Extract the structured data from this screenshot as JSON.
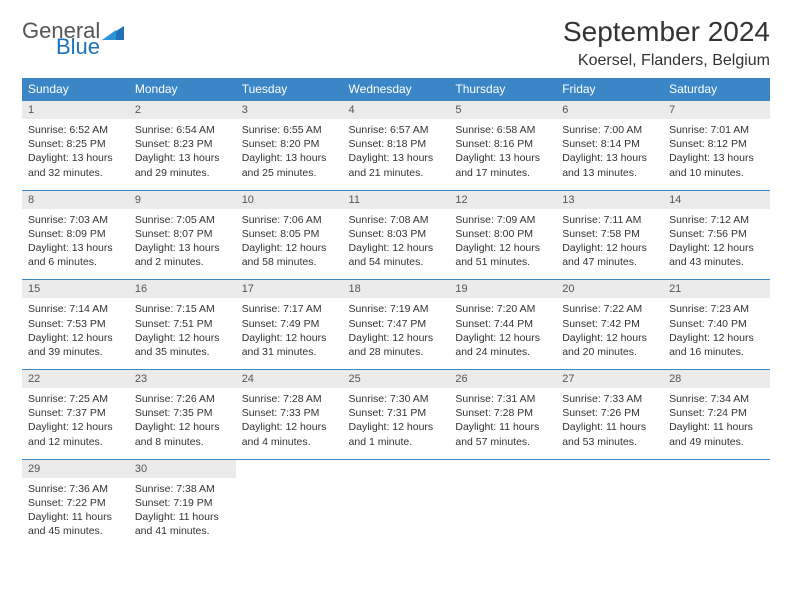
{
  "logo": {
    "general": "General",
    "blue": "Blue"
  },
  "title": "September 2024",
  "location": "Koersel, Flanders, Belgium",
  "colors": {
    "header_bg": "#3b86c6",
    "header_text": "#ffffff",
    "daynum_bg": "#ebebeb",
    "border": "#3b86c6",
    "body_text": "#333333",
    "logo_blue": "#1f71b8"
  },
  "day_headers": [
    "Sunday",
    "Monday",
    "Tuesday",
    "Wednesday",
    "Thursday",
    "Friday",
    "Saturday"
  ],
  "weeks": [
    {
      "nums": [
        "1",
        "2",
        "3",
        "4",
        "5",
        "6",
        "7"
      ],
      "cells": [
        {
          "sunrise": "Sunrise: 6:52 AM",
          "sunset": "Sunset: 8:25 PM",
          "daylight1": "Daylight: 13 hours",
          "daylight2": "and 32 minutes."
        },
        {
          "sunrise": "Sunrise: 6:54 AM",
          "sunset": "Sunset: 8:23 PM",
          "daylight1": "Daylight: 13 hours",
          "daylight2": "and 29 minutes."
        },
        {
          "sunrise": "Sunrise: 6:55 AM",
          "sunset": "Sunset: 8:20 PM",
          "daylight1": "Daylight: 13 hours",
          "daylight2": "and 25 minutes."
        },
        {
          "sunrise": "Sunrise: 6:57 AM",
          "sunset": "Sunset: 8:18 PM",
          "daylight1": "Daylight: 13 hours",
          "daylight2": "and 21 minutes."
        },
        {
          "sunrise": "Sunrise: 6:58 AM",
          "sunset": "Sunset: 8:16 PM",
          "daylight1": "Daylight: 13 hours",
          "daylight2": "and 17 minutes."
        },
        {
          "sunrise": "Sunrise: 7:00 AM",
          "sunset": "Sunset: 8:14 PM",
          "daylight1": "Daylight: 13 hours",
          "daylight2": "and 13 minutes."
        },
        {
          "sunrise": "Sunrise: 7:01 AM",
          "sunset": "Sunset: 8:12 PM",
          "daylight1": "Daylight: 13 hours",
          "daylight2": "and 10 minutes."
        }
      ]
    },
    {
      "nums": [
        "8",
        "9",
        "10",
        "11",
        "12",
        "13",
        "14"
      ],
      "cells": [
        {
          "sunrise": "Sunrise: 7:03 AM",
          "sunset": "Sunset: 8:09 PM",
          "daylight1": "Daylight: 13 hours",
          "daylight2": "and 6 minutes."
        },
        {
          "sunrise": "Sunrise: 7:05 AM",
          "sunset": "Sunset: 8:07 PM",
          "daylight1": "Daylight: 13 hours",
          "daylight2": "and 2 minutes."
        },
        {
          "sunrise": "Sunrise: 7:06 AM",
          "sunset": "Sunset: 8:05 PM",
          "daylight1": "Daylight: 12 hours",
          "daylight2": "and 58 minutes."
        },
        {
          "sunrise": "Sunrise: 7:08 AM",
          "sunset": "Sunset: 8:03 PM",
          "daylight1": "Daylight: 12 hours",
          "daylight2": "and 54 minutes."
        },
        {
          "sunrise": "Sunrise: 7:09 AM",
          "sunset": "Sunset: 8:00 PM",
          "daylight1": "Daylight: 12 hours",
          "daylight2": "and 51 minutes."
        },
        {
          "sunrise": "Sunrise: 7:11 AM",
          "sunset": "Sunset: 7:58 PM",
          "daylight1": "Daylight: 12 hours",
          "daylight2": "and 47 minutes."
        },
        {
          "sunrise": "Sunrise: 7:12 AM",
          "sunset": "Sunset: 7:56 PM",
          "daylight1": "Daylight: 12 hours",
          "daylight2": "and 43 minutes."
        }
      ]
    },
    {
      "nums": [
        "15",
        "16",
        "17",
        "18",
        "19",
        "20",
        "21"
      ],
      "cells": [
        {
          "sunrise": "Sunrise: 7:14 AM",
          "sunset": "Sunset: 7:53 PM",
          "daylight1": "Daylight: 12 hours",
          "daylight2": "and 39 minutes."
        },
        {
          "sunrise": "Sunrise: 7:15 AM",
          "sunset": "Sunset: 7:51 PM",
          "daylight1": "Daylight: 12 hours",
          "daylight2": "and 35 minutes."
        },
        {
          "sunrise": "Sunrise: 7:17 AM",
          "sunset": "Sunset: 7:49 PM",
          "daylight1": "Daylight: 12 hours",
          "daylight2": "and 31 minutes."
        },
        {
          "sunrise": "Sunrise: 7:19 AM",
          "sunset": "Sunset: 7:47 PM",
          "daylight1": "Daylight: 12 hours",
          "daylight2": "and 28 minutes."
        },
        {
          "sunrise": "Sunrise: 7:20 AM",
          "sunset": "Sunset: 7:44 PM",
          "daylight1": "Daylight: 12 hours",
          "daylight2": "and 24 minutes."
        },
        {
          "sunrise": "Sunrise: 7:22 AM",
          "sunset": "Sunset: 7:42 PM",
          "daylight1": "Daylight: 12 hours",
          "daylight2": "and 20 minutes."
        },
        {
          "sunrise": "Sunrise: 7:23 AM",
          "sunset": "Sunset: 7:40 PM",
          "daylight1": "Daylight: 12 hours",
          "daylight2": "and 16 minutes."
        }
      ]
    },
    {
      "nums": [
        "22",
        "23",
        "24",
        "25",
        "26",
        "27",
        "28"
      ],
      "cells": [
        {
          "sunrise": "Sunrise: 7:25 AM",
          "sunset": "Sunset: 7:37 PM",
          "daylight1": "Daylight: 12 hours",
          "daylight2": "and 12 minutes."
        },
        {
          "sunrise": "Sunrise: 7:26 AM",
          "sunset": "Sunset: 7:35 PM",
          "daylight1": "Daylight: 12 hours",
          "daylight2": "and 8 minutes."
        },
        {
          "sunrise": "Sunrise: 7:28 AM",
          "sunset": "Sunset: 7:33 PM",
          "daylight1": "Daylight: 12 hours",
          "daylight2": "and 4 minutes."
        },
        {
          "sunrise": "Sunrise: 7:30 AM",
          "sunset": "Sunset: 7:31 PM",
          "daylight1": "Daylight: 12 hours",
          "daylight2": "and 1 minute."
        },
        {
          "sunrise": "Sunrise: 7:31 AM",
          "sunset": "Sunset: 7:28 PM",
          "daylight1": "Daylight: 11 hours",
          "daylight2": "and 57 minutes."
        },
        {
          "sunrise": "Sunrise: 7:33 AM",
          "sunset": "Sunset: 7:26 PM",
          "daylight1": "Daylight: 11 hours",
          "daylight2": "and 53 minutes."
        },
        {
          "sunrise": "Sunrise: 7:34 AM",
          "sunset": "Sunset: 7:24 PM",
          "daylight1": "Daylight: 11 hours",
          "daylight2": "and 49 minutes."
        }
      ]
    },
    {
      "nums": [
        "29",
        "30",
        "",
        "",
        "",
        "",
        ""
      ],
      "cells": [
        {
          "sunrise": "Sunrise: 7:36 AM",
          "sunset": "Sunset: 7:22 PM",
          "daylight1": "Daylight: 11 hours",
          "daylight2": "and 45 minutes."
        },
        {
          "sunrise": "Sunrise: 7:38 AM",
          "sunset": "Sunset: 7:19 PM",
          "daylight1": "Daylight: 11 hours",
          "daylight2": "and 41 minutes."
        },
        null,
        null,
        null,
        null,
        null
      ]
    }
  ]
}
